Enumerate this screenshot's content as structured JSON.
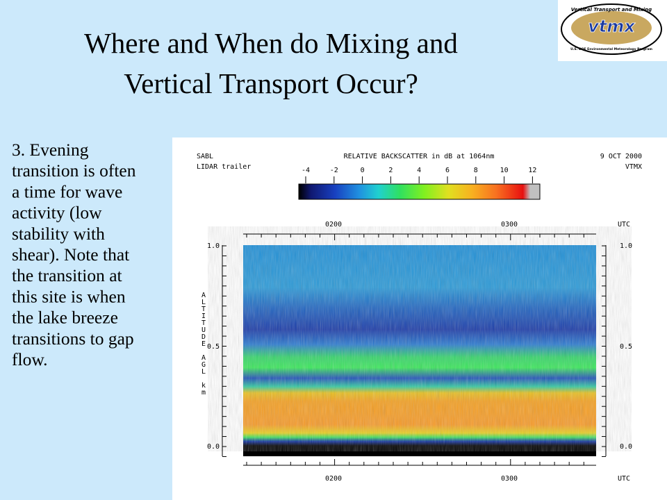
{
  "header": {
    "title_lines": [
      "Where and When do Mixing and",
      "Vertical Transport Occur?"
    ]
  },
  "logo": {
    "top_text": "Vertical Transport and Mixing",
    "name": "vtmx",
    "bottom_text": "U.S. DOE Environmental Meteorology Program"
  },
  "body": {
    "lines": [
      "3. Evening",
      "transition is often",
      "a time for wave",
      "activity (low",
      "stability with",
      "shear). Note that",
      "the transition at",
      "this site is when",
      "the lake breeze",
      "transitions to gap",
      "flow."
    ]
  },
  "figure": {
    "top_left": [
      "SABL",
      "LIDAR trailer"
    ],
    "colorbar_title": "RELATIVE BACKSCATTER in dB at 1064nm",
    "top_right": [
      "9 OCT 2000",
      "VTMX"
    ],
    "colorbar_ticks": [
      "-4",
      "-2",
      "0",
      "2",
      "4",
      "6",
      "8",
      "10",
      "12"
    ],
    "time_ticks": [
      "0200",
      "0300"
    ],
    "time_unit": "UTC",
    "altitude_ticks": [
      "1.0",
      "0.5",
      "0.0"
    ],
    "altitude_label": "ALTITUDE AGL km"
  }
}
